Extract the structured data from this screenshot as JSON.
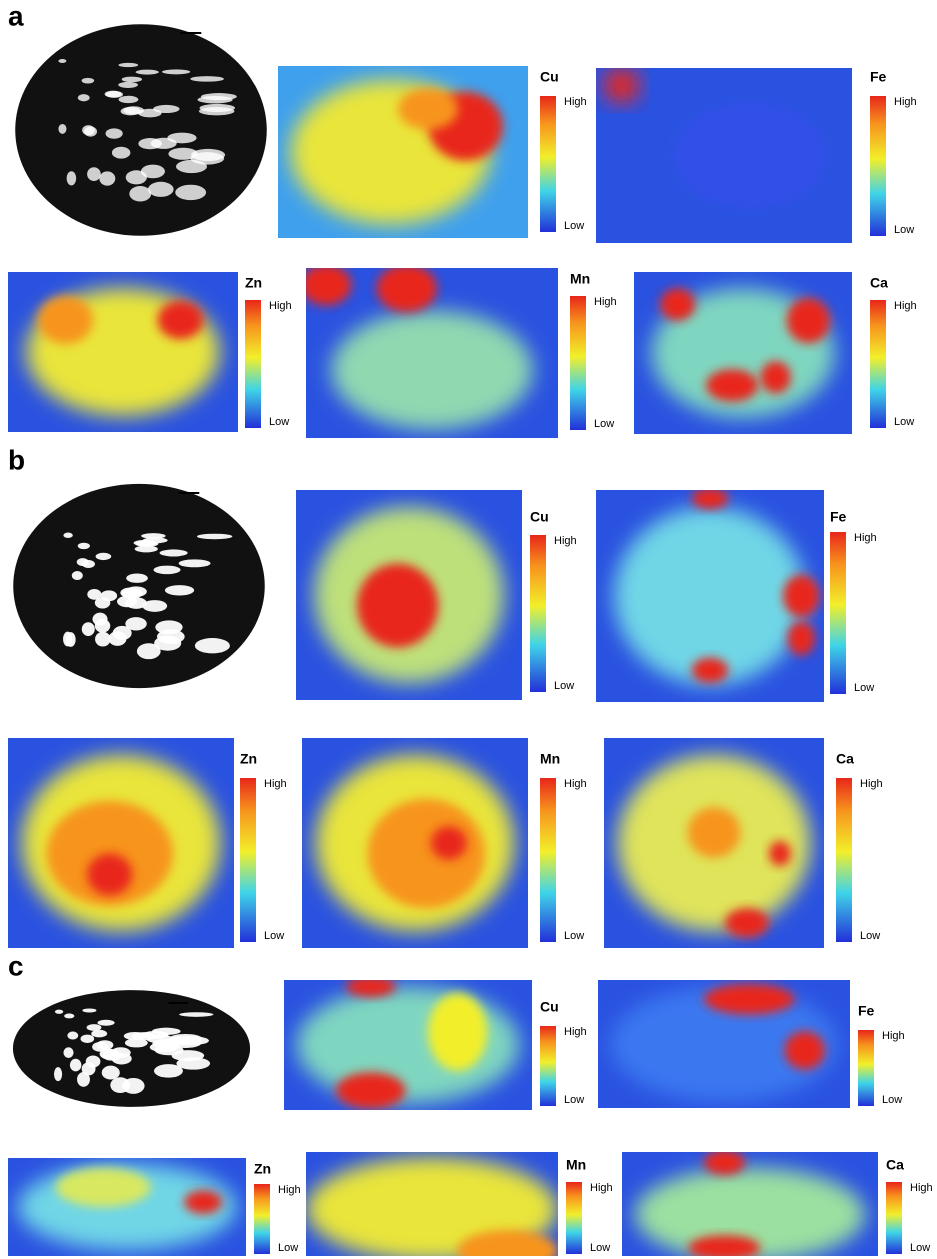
{
  "panels": [
    {
      "label": "a",
      "maps": [
        {
          "element": "Cu",
          "high": "High",
          "low": "Low"
        },
        {
          "element": "Fe",
          "high": "High",
          "low": "Low"
        },
        {
          "element": "Zn",
          "high": "High",
          "low": "Low"
        },
        {
          "element": "Mn",
          "high": "High",
          "low": "Low"
        },
        {
          "element": "Ca",
          "high": "High",
          "low": "Low"
        }
      ]
    },
    {
      "label": "b",
      "maps": [
        {
          "element": "Cu",
          "high": "High",
          "low": "Low"
        },
        {
          "element": "Fe",
          "high": "High",
          "low": "Low"
        },
        {
          "element": "Zn",
          "high": "High",
          "low": "Low"
        },
        {
          "element": "Mn",
          "high": "High",
          "low": "Low"
        },
        {
          "element": "Ca",
          "high": "High",
          "low": "Low"
        }
      ]
    },
    {
      "label": "c",
      "maps": [
        {
          "element": "Cu",
          "high": "High",
          "low": "Low"
        },
        {
          "element": "Fe",
          "high": "High",
          "low": "Low"
        },
        {
          "element": "Zn",
          "high": "High",
          "low": "Low"
        },
        {
          "element": "Mn",
          "high": "High",
          "low": "Low"
        },
        {
          "element": "Ca",
          "high": "High",
          "low": "Low"
        }
      ]
    }
  ]
}
